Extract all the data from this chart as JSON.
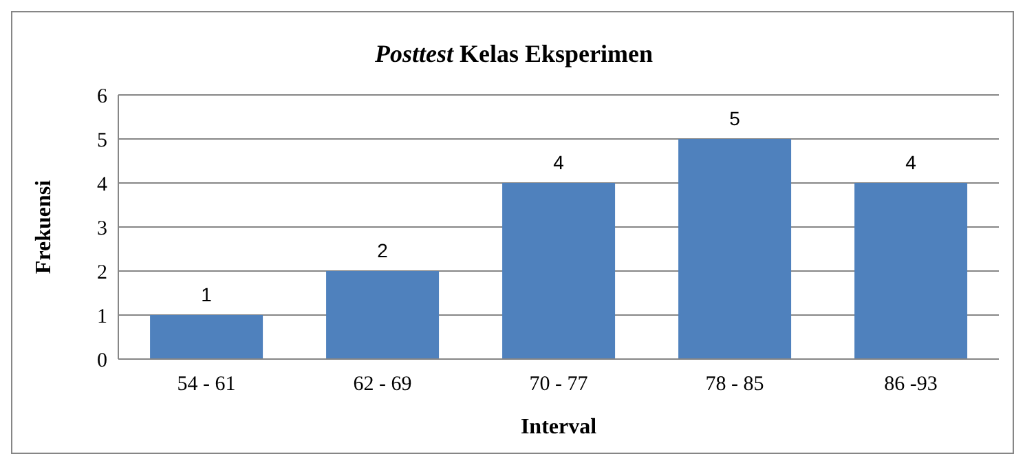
{
  "chart_data": {
    "type": "bar",
    "title": "Posttest Kelas Eksperimen",
    "xlabel": "Interval",
    "ylabel": "Frekuensi",
    "categories": [
      "54 - 61",
      "62 - 69",
      "70 - 77",
      "78 - 85",
      "86 -93"
    ],
    "values": [
      1,
      2,
      4,
      5,
      4
    ],
    "color": "#4f81bd",
    "ylim": [
      0,
      6
    ],
    "yticks": [
      0,
      1,
      2,
      3,
      4,
      5,
      6
    ],
    "grid": "y",
    "data_labels": true
  }
}
